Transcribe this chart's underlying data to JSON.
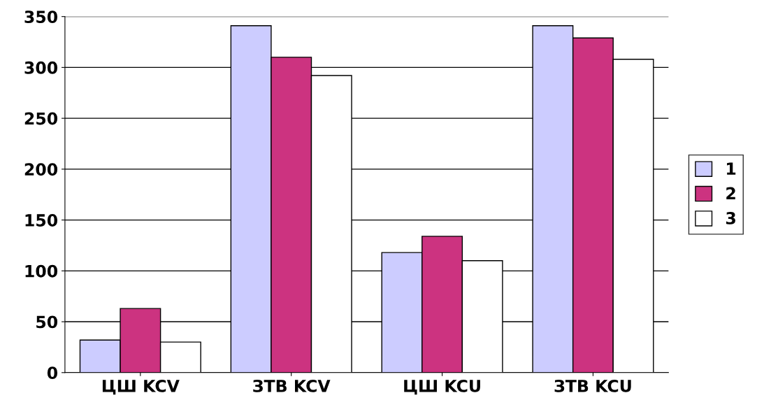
{
  "chart_data": {
    "type": "bar",
    "categories": [
      "ЦШ KCV",
      "ЗТВ KCV",
      "ЦШ KCU",
      "ЗТВ KCU"
    ],
    "series": [
      {
        "name": "1",
        "color": "#ccccff",
        "values": [
          32,
          341,
          118,
          341
        ]
      },
      {
        "name": "2",
        "color": "#cc3380",
        "values": [
          63,
          310,
          134,
          329
        ]
      },
      {
        "name": "3",
        "color": "#ffffff",
        "values": [
          30,
          292,
          110,
          308
        ]
      }
    ],
    "ylim": [
      0,
      350
    ],
    "yticks": [
      0,
      50,
      100,
      150,
      200,
      250,
      300,
      350
    ],
    "grid": "y",
    "legend": "right"
  }
}
